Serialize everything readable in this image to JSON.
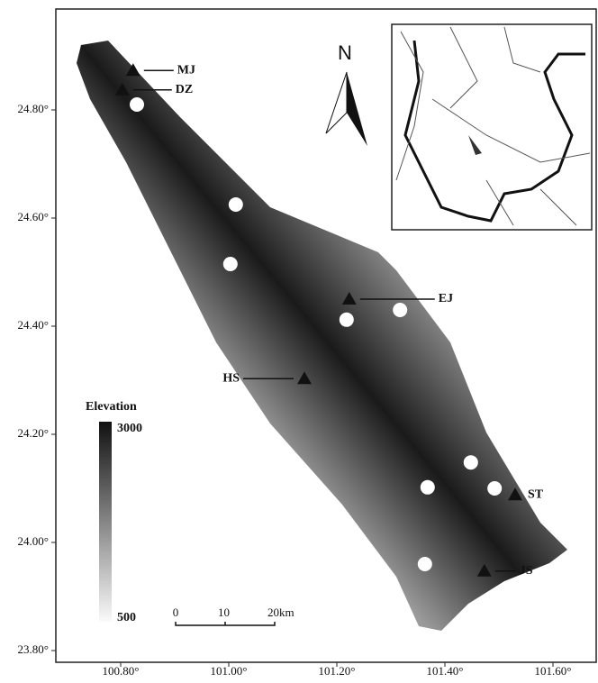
{
  "map": {
    "xticks": [
      {
        "value": 100.8,
        "label": "100.80°"
      },
      {
        "value": 101.0,
        "label": "101.00°"
      },
      {
        "value": 101.2,
        "label": "101.20°"
      },
      {
        "value": 101.4,
        "label": "101.40°"
      },
      {
        "value": 101.6,
        "label": "101.60°"
      }
    ],
    "yticks": [
      {
        "value": 24.8,
        "label": "24.80°"
      },
      {
        "value": 24.6,
        "label": "24.60°"
      },
      {
        "value": 24.4,
        "label": "24.40°"
      },
      {
        "value": 24.2,
        "label": "24.20°"
      },
      {
        "value": 24.0,
        "label": "24.00°"
      },
      {
        "value": 23.8,
        "label": "23.80°"
      }
    ],
    "stations": [
      {
        "label": "MJ",
        "lon": 100.823,
        "lat": 24.873
      },
      {
        "label": "DZ",
        "lon": 100.803,
        "lat": 24.837
      },
      {
        "label": "EJ",
        "lon": 101.223,
        "lat": 24.45
      },
      {
        "label": "HS",
        "lon": 101.14,
        "lat": 24.303
      },
      {
        "label": "ST",
        "lon": 101.53,
        "lat": 24.088
      },
      {
        "label": "JS",
        "lon": 101.473,
        "lat": 23.947
      }
    ],
    "sites": [
      {
        "lon": 100.83,
        "lat": 24.81
      },
      {
        "lon": 101.013,
        "lat": 24.625
      },
      {
        "lon": 101.003,
        "lat": 24.515
      },
      {
        "lon": 101.218,
        "lat": 24.412
      },
      {
        "lon": 101.317,
        "lat": 24.43
      },
      {
        "lon": 101.448,
        "lat": 24.148
      },
      {
        "lon": 101.368,
        "lat": 24.102
      },
      {
        "lon": 101.492,
        "lat": 24.1
      },
      {
        "lon": 101.363,
        "lat": 23.96
      }
    ],
    "north": "N",
    "legend": {
      "title": "Elevation",
      "max": "3000",
      "min": "500"
    },
    "scale": [
      "0",
      "10",
      "20km"
    ]
  }
}
